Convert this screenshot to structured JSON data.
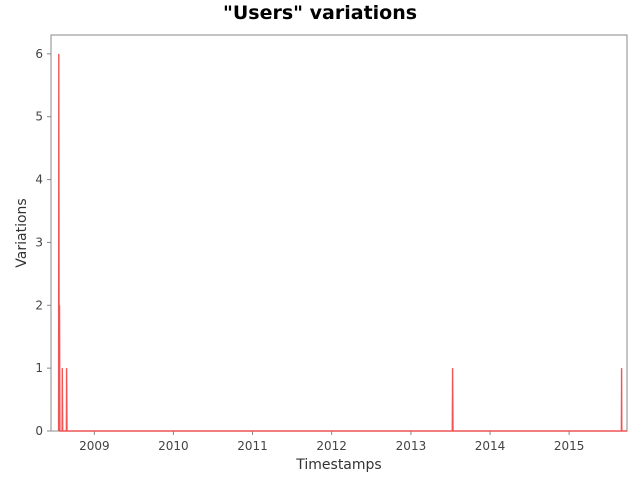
{
  "chart_data": {
    "type": "line",
    "title": "\"Users\" variations",
    "xlabel": "Timestamps",
    "ylabel": "Variations",
    "xlim": [
      "2008-06-15",
      "2015-09-25"
    ],
    "ylim": [
      0,
      6.3
    ],
    "x_ticks": [
      "2009",
      "2010",
      "2011",
      "2012",
      "2013",
      "2014",
      "2015"
    ],
    "y_ticks": [
      "0",
      "1",
      "2",
      "3",
      "4",
      "5",
      "6"
    ],
    "grid": false,
    "legend": "none",
    "series": [
      {
        "color": "#ee5555",
        "points": [
          {
            "x": "2008-07-20",
            "y": 0
          },
          {
            "x": "2008-07-21",
            "y": 6
          },
          {
            "x": "2008-07-23",
            "y": 0
          },
          {
            "x": "2008-07-24",
            "y": 2
          },
          {
            "x": "2008-07-26",
            "y": 0
          },
          {
            "x": "2008-08-05",
            "y": 0
          },
          {
            "x": "2008-08-06",
            "y": 1
          },
          {
            "x": "2008-08-08",
            "y": 0
          },
          {
            "x": "2008-08-25",
            "y": 0
          },
          {
            "x": "2008-08-26",
            "y": 1
          },
          {
            "x": "2008-08-28",
            "y": 0
          },
          {
            "x": "2013-07-11",
            "y": 0
          },
          {
            "x": "2013-07-12",
            "y": 1
          },
          {
            "x": "2013-07-14",
            "y": 0
          },
          {
            "x": "2015-08-30",
            "y": 0
          },
          {
            "x": "2015-08-31",
            "y": 1
          },
          {
            "x": "2015-09-01",
            "y": 0
          }
        ]
      }
    ]
  }
}
